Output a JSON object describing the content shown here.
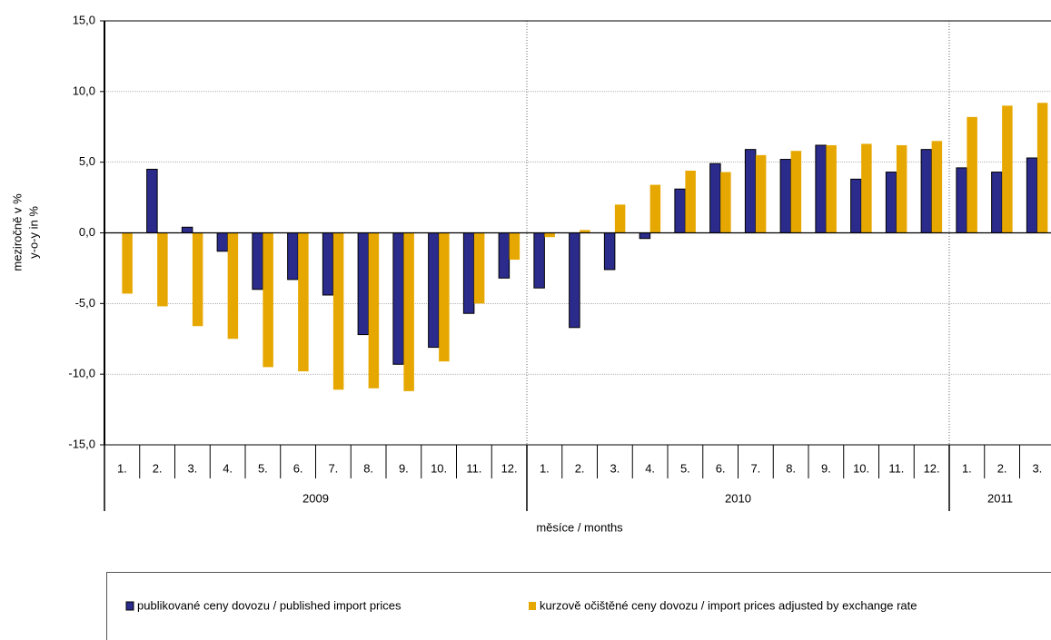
{
  "chart_data": {
    "type": "bar",
    "y_label": [
      "meziročně v %",
      "y-o-y in %"
    ],
    "x_label": "měsíce / months",
    "categories": [
      "1.",
      "2.",
      "3.",
      "4.",
      "5.",
      "6.",
      "7.",
      "8.",
      "9.",
      "10.",
      "11.",
      "12.",
      "1.",
      "2.",
      "3.",
      "4.",
      "5.",
      "6.",
      "7.",
      "8.",
      "9.",
      "10.",
      "11.",
      "12.",
      "1.",
      "2.",
      "3."
    ],
    "year_groups": [
      "2009",
      "2010",
      "2011"
    ],
    "series": [
      {
        "name": "publikované ceny dovozu / published import prices",
        "color": "#2b2b8c",
        "values": [
          0,
          4.5,
          0.4,
          -1.3,
          -4.0,
          -3.3,
          -4.4,
          -7.2,
          -9.3,
          -8.1,
          -5.7,
          -3.2,
          -3.9,
          -6.7,
          -2.6,
          -0.4,
          3.1,
          4.9,
          5.9,
          5.2,
          6.2,
          3.8,
          4.3,
          5.9,
          4.6,
          4.3,
          5.3
        ]
      },
      {
        "name": "kurzově očištěné ceny dovozu / import prices adjusted by exchange rate",
        "color": "#e6a800",
        "values": [
          -4.3,
          -5.2,
          -6.6,
          -7.5,
          -9.5,
          -9.8,
          -11.1,
          -11.0,
          -11.2,
          -9.1,
          -5.0,
          -1.9,
          -0.3,
          0.2,
          2.0,
          3.4,
          4.4,
          4.3,
          5.5,
          5.8,
          6.2,
          6.3,
          6.2,
          6.5,
          8.2,
          9.0,
          9.2
        ]
      }
    ],
    "ylim": [
      -15,
      15
    ],
    "yticks": [
      {
        "value": -15,
        "label": "-15,0"
      },
      {
        "value": -10,
        "label": "-10,0"
      },
      {
        "value": -5,
        "label": "-5,0"
      },
      {
        "value": 0,
        "label": "0,0"
      },
      {
        "value": 5,
        "label": "5,0"
      },
      {
        "value": 10,
        "label": "10,0"
      },
      {
        "value": 15,
        "label": "15,0"
      }
    ],
    "grid": true
  }
}
